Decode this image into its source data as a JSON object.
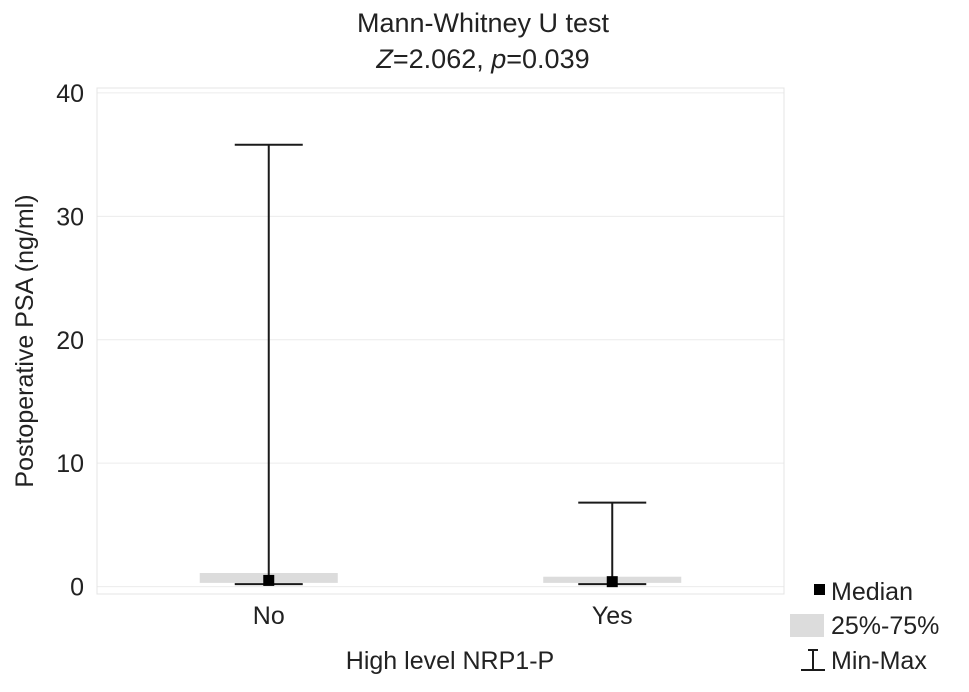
{
  "chart_data": {
    "type": "box",
    "title": {
      "line1": "Mann-Whitney U test",
      "z_symbol": "Z",
      "z_value": "=2.062, ",
      "p_symbol": "p",
      "p_value": "=0.039"
    },
    "xlabel": "High level NRP1-P",
    "ylabel": "Postoperative PSA (ng/ml)",
    "ylim": [
      -0.6,
      40.4
    ],
    "yticks": [
      0,
      10,
      20,
      30,
      40
    ],
    "grid": true,
    "categories": [
      "No",
      "Yes"
    ],
    "groups": [
      {
        "category": "No",
        "min": 0.2,
        "q1": 0.3,
        "median": 0.5,
        "q3": 1.1,
        "max": 35.8
      },
      {
        "category": "Yes",
        "min": 0.2,
        "q1": 0.3,
        "median": 0.4,
        "q3": 0.8,
        "max": 6.8
      }
    ],
    "legend": {
      "placement": "bottom-right",
      "items": [
        {
          "key": "median",
          "label": "Median"
        },
        {
          "key": "iqr",
          "label": "25%-75%"
        },
        {
          "key": "range",
          "label": "Min-Max"
        }
      ]
    },
    "colors": {
      "iqr_fill": "#dcdcdc",
      "whisker": "#1a1a1a",
      "median": "#000000",
      "grid": "#ececec",
      "frame": "#e4e4e4"
    }
  }
}
